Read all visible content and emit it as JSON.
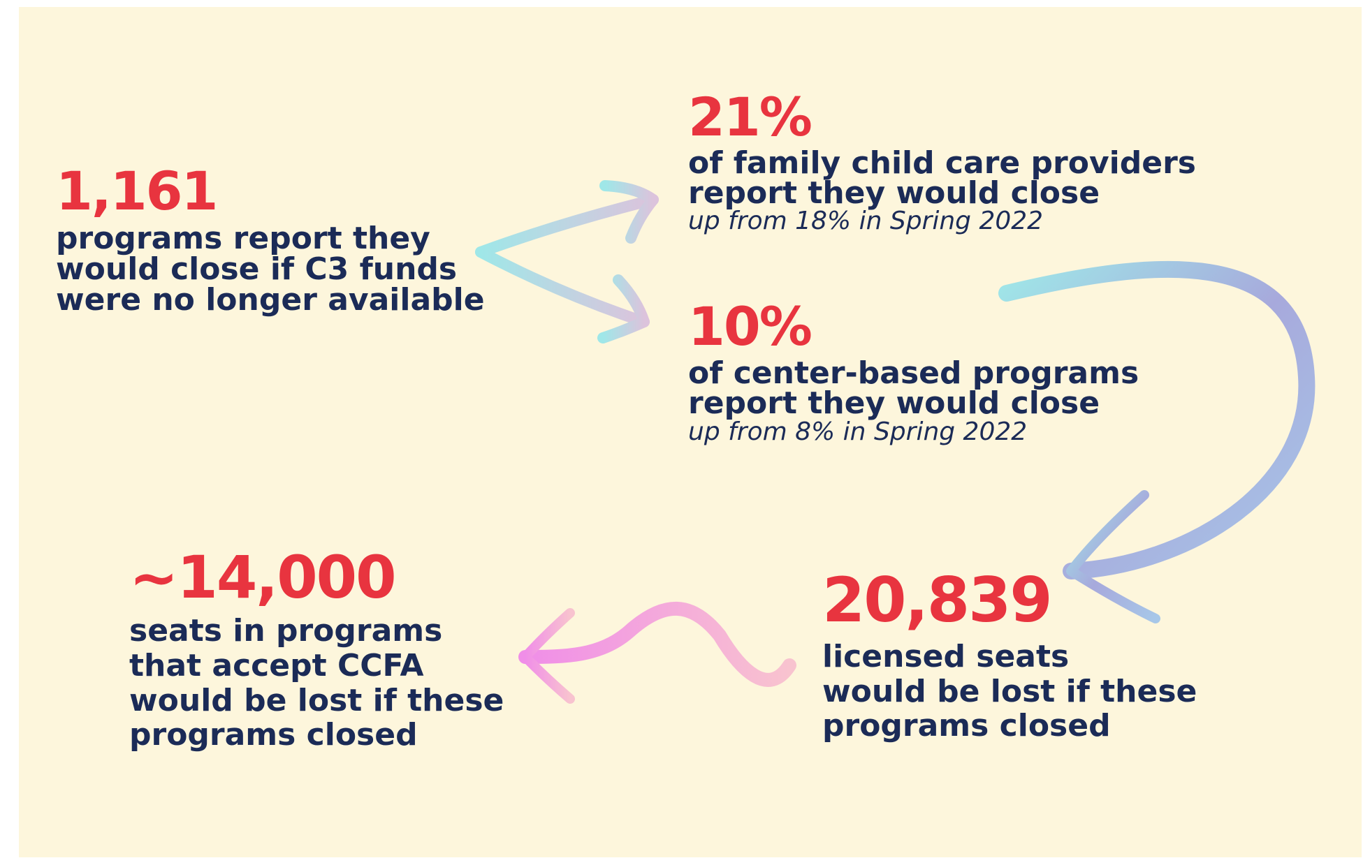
{
  "nodes": [
    {
      "stat": "1,161",
      "lines": [
        "programs report they",
        "would close if C3 funds",
        "were no longer available"
      ]
    },
    {
      "stat": "21%",
      "lines": [
        "of family child care providers",
        "report they would close"
      ],
      "note": "up from 18% in Spring 2022"
    },
    {
      "stat": "10%",
      "lines": [
        "of center-based programs",
        "report they would close"
      ],
      "note": "up from 8% in Spring 2022"
    },
    {
      "stat": "20,839",
      "lines": [
        "licensed seats",
        "would be lost if these",
        "programs closed"
      ]
    },
    {
      "stat": "~14,000",
      "lines": [
        "seats in programs",
        "that accept CCFA",
        "would be lost if these",
        "programs closed"
      ]
    }
  ]
}
